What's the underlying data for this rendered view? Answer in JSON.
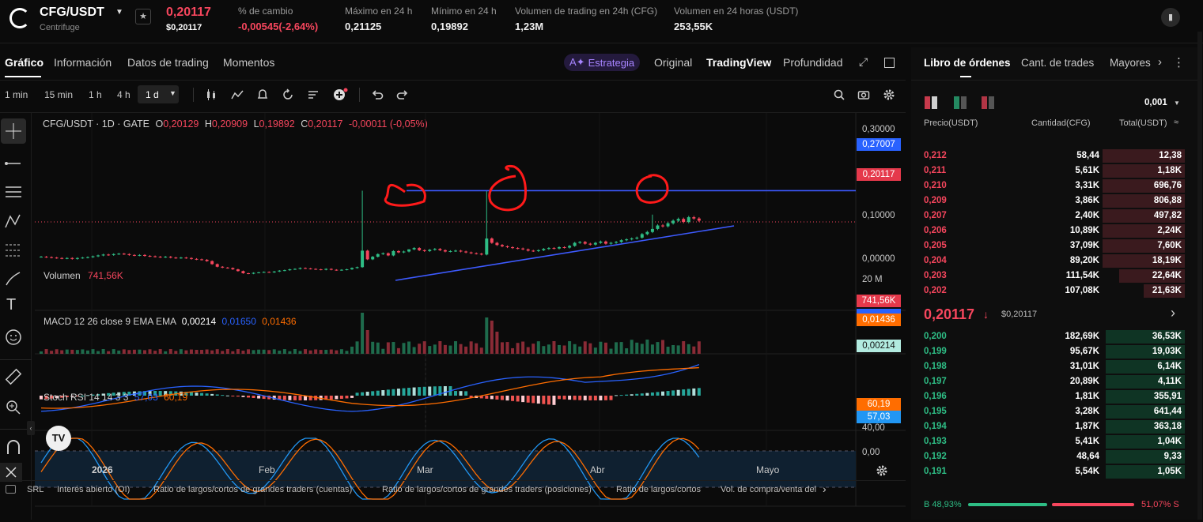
{
  "header": {
    "pair": "CFG/USDT",
    "project": "Centrifuge",
    "price": "0,20117",
    "price_usd": "$0,20117",
    "stats": [
      {
        "label": "% de cambio",
        "value": "-0,00545(-2,64%)",
        "color": "red"
      },
      {
        "label": "Máximo en 24 h",
        "value": "0,21125",
        "color": "white"
      },
      {
        "label": "Mínimo en 24 h",
        "value": "0,19892",
        "color": "white"
      },
      {
        "label": "Volumen de trading en 24h (CFG)",
        "value": "1,23M",
        "color": "white"
      },
      {
        "label": "Volumen en 24 horas (USDT)",
        "value": "253,55K",
        "color": "white"
      }
    ]
  },
  "chart_tabs": [
    "Gráfico",
    "Información",
    "Datos de trading",
    "Momentos"
  ],
  "view_modes": {
    "strategy": "Estrategia",
    "original": "Original",
    "tradingview": "TradingView",
    "depth": "Profundidad"
  },
  "timeframes": [
    "1 min",
    "15 min",
    "1 h",
    "4 h",
    "1 d"
  ],
  "active_timeframe": "1 d",
  "legend": {
    "symbol": "CFG/USDT · 1D · GATE",
    "ohlc": [
      {
        "k": "O",
        "v": "0,20129"
      },
      {
        "k": "H",
        "v": "0,20909"
      },
      {
        "k": "L",
        "v": "0,19892"
      },
      {
        "k": "C",
        "v": "0,20117"
      }
    ],
    "change": "-0,00011 (-0,05%)"
  },
  "price_axis": {
    "ticks": [
      "0,30000",
      "0,10000",
      "0,00000"
    ],
    "line_label": "0,27007",
    "last_label": "0,20117"
  },
  "volume": {
    "label": "Volumen",
    "value": "741,56K",
    "axis_tick": "20 M",
    "badge": "741,56K"
  },
  "macd": {
    "label": "MACD 12 26 close 9 EMA EMA",
    "v1": "0,00214",
    "v2": "0,01650",
    "v3": "0,01436",
    "badge_signal": "0,01436",
    "badge_hist": "0,00214"
  },
  "stoch": {
    "label": "Stoch RSI 14 14 3 3",
    "k": "57,03",
    "d": "60,19",
    "ticks": [
      "40,00",
      "0,00"
    ]
  },
  "time_axis": [
    "2026",
    "Feb",
    "Mar",
    "Abr",
    "Mayo"
  ],
  "bottom_links": [
    "SRL",
    "Interés abierto (OI)",
    "Ratio de largos/cortos de grandes traders (cuentas)",
    "Ratio de largos/cortos de grandes traders (posiciones)",
    "Ratio de largos/cortos",
    "Vol. de compra/venta del"
  ],
  "colors": {
    "up": "#2ebd85",
    "down": "#f6465d",
    "trendline": "#3d5afe",
    "annotation": "#ff1a1a",
    "macd": "#2962ff",
    "signal": "#ff6d00"
  },
  "orderbook": {
    "tabs": [
      "Libro de órdenes",
      "Cant. de trades",
      "Mayores"
    ],
    "precision": "0,001",
    "headers": {
      "price": "Precio(USDT)",
      "qty": "Cantidad(CFG)",
      "total": "Total(USDT)"
    },
    "asks": [
      {
        "p": "0,212",
        "q": "58,44",
        "t": "12,38",
        "depth": 0.3
      },
      {
        "p": "0,211",
        "q": "5,61K",
        "t": "1,18K",
        "depth": 0.3
      },
      {
        "p": "0,210",
        "q": "3,31K",
        "t": "696,76",
        "depth": 0.3
      },
      {
        "p": "0,209",
        "q": "3,86K",
        "t": "806,88",
        "depth": 0.3
      },
      {
        "p": "0,207",
        "q": "2,40K",
        "t": "497,82",
        "depth": 0.3
      },
      {
        "p": "0,206",
        "q": "10,89K",
        "t": "2,24K",
        "depth": 0.3
      },
      {
        "p": "0,205",
        "q": "37,09K",
        "t": "7,60K",
        "depth": 0.3
      },
      {
        "p": "0,204",
        "q": "89,20K",
        "t": "18,19K",
        "depth": 0.3
      },
      {
        "p": "0,203",
        "q": "111,54K",
        "t": "22,64K",
        "depth": 0.24
      },
      {
        "p": "0,202",
        "q": "107,08K",
        "t": "21,63K",
        "depth": 0.15
      }
    ],
    "mid": {
      "price": "0,20117",
      "usd": "$0,20117"
    },
    "bids": [
      {
        "p": "0,200",
        "q": "182,69K",
        "t": "36,53K",
        "depth": 0.29
      },
      {
        "p": "0,199",
        "q": "95,67K",
        "t": "19,03K",
        "depth": 0.29
      },
      {
        "p": "0,198",
        "q": "31,01K",
        "t": "6,14K",
        "depth": 0.29
      },
      {
        "p": "0,197",
        "q": "20,89K",
        "t": "4,11K",
        "depth": 0.29
      },
      {
        "p": "0,196",
        "q": "1,81K",
        "t": "355,91",
        "depth": 0.29
      },
      {
        "p": "0,195",
        "q": "3,28K",
        "t": "641,44",
        "depth": 0.29
      },
      {
        "p": "0,194",
        "q": "1,87K",
        "t": "363,18",
        "depth": 0.29
      },
      {
        "p": "0,193",
        "q": "5,41K",
        "t": "1,04K",
        "depth": 0.29
      },
      {
        "p": "0,192",
        "q": "48,64",
        "t": "9,33",
        "depth": 0.29
      },
      {
        "p": "0,191",
        "q": "5,54K",
        "t": "1,05K",
        "depth": 0.29
      }
    ],
    "ratio": {
      "buy": "B 48,93%",
      "sell": "51,07% S",
      "buy_frac": 0.4893
    }
  }
}
